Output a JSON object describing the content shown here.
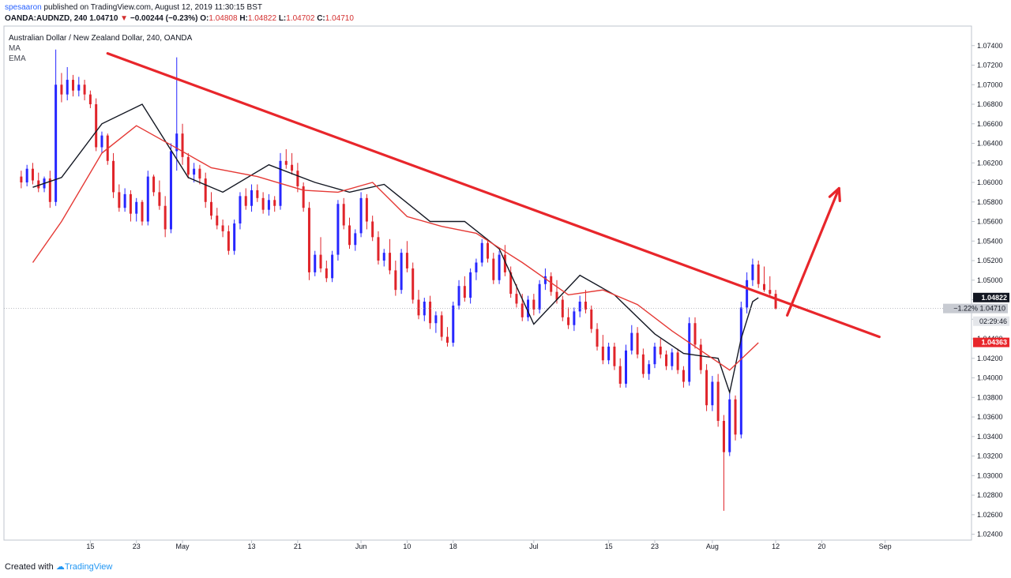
{
  "header": {
    "user": "spesaaron",
    "published": "published on TradingView.com, August 12, 2019 11:30:15 BST",
    "symbol_interval": "OANDA:AUDNZD, 240",
    "last": "1.04710",
    "change": "−0.00244 (−0.23%)",
    "o_label": "O:",
    "o": "1.04808",
    "h_label": "H:",
    "h": "1.04822",
    "l_label": "L:",
    "l": "1.04702",
    "c_label": "C:",
    "c": "1.04710"
  },
  "legend": {
    "title": "Australian Dollar / New Zealand Dollar, 240, OANDA",
    "ma": "MA",
    "ema": "EMA"
  },
  "footer": {
    "created": "Created with",
    "brand": "TradingView"
  },
  "colors": {
    "up": "#2727ff",
    "down": "#e0242a",
    "trendline": "#e8262b",
    "ma": "#131722",
    "ema": "#e53935",
    "brand": "#2196f3"
  },
  "chart_data": {
    "type": "candlestick",
    "title": "Australian Dollar / New Zealand Dollar, 240, OANDA",
    "ylim": [
      1.0234,
      1.076
    ],
    "y_ticks": [
      "1.07400",
      "1.07200",
      "1.07000",
      "1.06800",
      "1.06600",
      "1.06400",
      "1.06200",
      "1.06000",
      "1.05800",
      "1.05600",
      "1.05400",
      "1.05200",
      "1.05000",
      "1.04800",
      "1.04600",
      "1.04400",
      "1.04200",
      "1.04000",
      "1.03800",
      "1.03600",
      "1.03400",
      "1.03200",
      "1.03000",
      "1.02800",
      "1.02600",
      "1.02400"
    ],
    "x_ticks": [
      "15",
      "23",
      "May",
      "13",
      "21",
      "Jun",
      "10",
      "18",
      "Jul",
      "15",
      "23",
      "Aug",
      "12",
      "20",
      "Sep"
    ],
    "x_tick_days": [
      15,
      23,
      31,
      43,
      51,
      62,
      70,
      78,
      92,
      105,
      113,
      123,
      134,
      142,
      153
    ],
    "x_tick_day_origin": "2019-04-01",
    "series": [
      {
        "name": "MA",
        "values": [
          [
            5,
            1.0595
          ],
          [
            10,
            1.0605
          ],
          [
            17,
            1.066
          ],
          [
            24,
            1.068
          ],
          [
            32,
            1.0605
          ],
          [
            38,
            1.059
          ],
          [
            46,
            1.0618
          ],
          [
            54,
            1.06
          ],
          [
            60,
            1.059
          ],
          [
            66,
            1.0598
          ],
          [
            74,
            1.056
          ],
          [
            80,
            1.056
          ],
          [
            86,
            1.0532
          ],
          [
            92,
            1.0455
          ],
          [
            100,
            1.0505
          ],
          [
            106,
            1.0485
          ],
          [
            113,
            1.0445
          ],
          [
            118,
            1.0425
          ],
          [
            124,
            1.042
          ],
          [
            126,
            1.0385
          ],
          [
            128,
            1.044
          ],
          [
            130,
            1.0478
          ],
          [
            131,
            1.0482
          ]
        ]
      },
      {
        "name": "EMA",
        "values": [
          [
            5,
            1.0518
          ],
          [
            10,
            1.056
          ],
          [
            17,
            1.063
          ],
          [
            23,
            1.0658
          ],
          [
            30,
            1.0635
          ],
          [
            36,
            1.0615
          ],
          [
            44,
            1.0606
          ],
          [
            52,
            1.0592
          ],
          [
            58,
            1.059
          ],
          [
            64,
            1.06
          ],
          [
            70,
            1.0565
          ],
          [
            76,
            1.0555
          ],
          [
            82,
            1.0548
          ],
          [
            90,
            1.0518
          ],
          [
            98,
            1.0485
          ],
          [
            104,
            1.049
          ],
          [
            110,
            1.0475
          ],
          [
            116,
            1.0448
          ],
          [
            121,
            1.0428
          ],
          [
            126,
            1.0408
          ],
          [
            131,
            1.0436
          ]
        ]
      }
    ],
    "ohlc": [
      [
        3,
        1.0606,
        1.0612,
        1.0594,
        1.06
      ],
      [
        4,
        1.06,
        1.0618,
        1.0596,
        1.0614
      ],
      [
        5,
        1.0614,
        1.062,
        1.0598,
        1.0602
      ],
      [
        6,
        1.0602,
        1.061,
        1.059,
        1.0594
      ],
      [
        7,
        1.0594,
        1.0606,
        1.059,
        1.0604
      ],
      [
        8,
        1.0604,
        1.0612,
        1.0574,
        1.058
      ],
      [
        9,
        1.058,
        1.0736,
        1.0576,
        1.07
      ],
      [
        10,
        1.07,
        1.0712,
        1.0682,
        1.069
      ],
      [
        11,
        1.069,
        1.0718,
        1.0684,
        1.0705
      ],
      [
        12,
        1.0705,
        1.071,
        1.0688,
        1.0694
      ],
      [
        13,
        1.0694,
        1.0708,
        1.0688,
        1.07
      ],
      [
        14,
        1.07,
        1.0705,
        1.0684,
        1.069
      ],
      [
        15,
        1.069,
        1.0694,
        1.0676,
        1.068
      ],
      [
        16,
        1.068,
        1.0686,
        1.0632,
        1.0636
      ],
      [
        17,
        1.0636,
        1.0652,
        1.063,
        1.0648
      ],
      [
        18,
        1.0648,
        1.065,
        1.0618,
        1.0622
      ],
      [
        19,
        1.0622,
        1.063,
        1.0584,
        1.059
      ],
      [
        20,
        1.059,
        1.0598,
        1.057,
        1.0574
      ],
      [
        21,
        1.0574,
        1.0594,
        1.057,
        1.0588
      ],
      [
        22,
        1.0588,
        1.0592,
        1.056,
        1.0568
      ],
      [
        23,
        1.0568,
        1.0584,
        1.056,
        1.058
      ],
      [
        24,
        1.058,
        1.0582,
        1.0556,
        1.056
      ],
      [
        25,
        1.056,
        1.0612,
        1.0556,
        1.0606
      ],
      [
        26,
        1.0606,
        1.0608,
        1.0586,
        1.059
      ],
      [
        27,
        1.059,
        1.0602,
        1.0572,
        1.0576
      ],
      [
        28,
        1.0576,
        1.0586,
        1.0544,
        1.0552
      ],
      [
        29,
        1.0552,
        1.064,
        1.0548,
        1.0632
      ],
      [
        30,
        1.0632,
        1.0728,
        1.0612,
        1.065
      ],
      [
        31,
        1.065,
        1.066,
        1.0618,
        1.0626
      ],
      [
        32,
        1.0626,
        1.063,
        1.0604,
        1.0608
      ],
      [
        33,
        1.0608,
        1.062,
        1.06,
        1.0614
      ],
      [
        34,
        1.0614,
        1.0618,
        1.0598,
        1.0604
      ],
      [
        35,
        1.0604,
        1.061,
        1.0574,
        1.058
      ],
      [
        36,
        1.058,
        1.059,
        1.0562,
        1.0566
      ],
      [
        37,
        1.0566,
        1.0574,
        1.0552,
        1.0556
      ],
      [
        38,
        1.0556,
        1.0562,
        1.0544,
        1.055
      ],
      [
        39,
        1.055,
        1.0556,
        1.0526,
        1.053
      ],
      [
        40,
        1.053,
        1.0562,
        1.0526,
        1.0558
      ],
      [
        41,
        1.0558,
        1.059,
        1.0552,
        1.0586
      ],
      [
        42,
        1.0586,
        1.0594,
        1.0572,
        1.0576
      ],
      [
        43,
        1.0576,
        1.0598,
        1.057,
        1.0592
      ],
      [
        44,
        1.0592,
        1.0598,
        1.058,
        1.0584
      ],
      [
        45,
        1.0584,
        1.059,
        1.0568,
        1.0572
      ],
      [
        46,
        1.0572,
        1.0588,
        1.0566,
        1.0582
      ],
      [
        47,
        1.0582,
        1.0586,
        1.057,
        1.0576
      ],
      [
        48,
        1.0576,
        1.063,
        1.0572,
        1.0622
      ],
      [
        49,
        1.0622,
        1.0634,
        1.0614,
        1.0618
      ],
      [
        50,
        1.0618,
        1.063,
        1.0608,
        1.0612
      ],
      [
        51,
        1.0612,
        1.062,
        1.059,
        1.0596
      ],
      [
        52,
        1.0596,
        1.06,
        1.057,
        1.0574
      ],
      [
        53,
        1.0574,
        1.058,
        1.05,
        1.0508
      ],
      [
        54,
        1.0508,
        1.053,
        1.0504,
        1.0526
      ],
      [
        55,
        1.0526,
        1.0544,
        1.0508,
        1.0512
      ],
      [
        56,
        1.0512,
        1.052,
        1.0498,
        1.0502
      ],
      [
        57,
        1.0502,
        1.053,
        1.0498,
        1.0526
      ],
      [
        58,
        1.0526,
        1.0582,
        1.052,
        1.0578
      ],
      [
        59,
        1.0578,
        1.0584,
        1.0552,
        1.0556
      ],
      [
        60,
        1.0556,
        1.0564,
        1.0532,
        1.0536
      ],
      [
        61,
        1.0536,
        1.0552,
        1.053,
        1.0548
      ],
      [
        62,
        1.0548,
        1.059,
        1.0544,
        1.0584
      ],
      [
        63,
        1.0584,
        1.0588,
        1.0552,
        1.056
      ],
      [
        64,
        1.056,
        1.0566,
        1.054,
        1.0544
      ],
      [
        65,
        1.0544,
        1.055,
        1.0516,
        1.052
      ],
      [
        66,
        1.052,
        1.0532,
        1.0514,
        1.0528
      ],
      [
        67,
        1.0528,
        1.0542,
        1.0506,
        1.051
      ],
      [
        68,
        1.051,
        1.052,
        1.0484,
        1.049
      ],
      [
        69,
        1.049,
        1.0532,
        1.0486,
        1.0528
      ],
      [
        70,
        1.0528,
        1.054,
        1.0508,
        1.0512
      ],
      [
        71,
        1.0512,
        1.0518,
        1.0476,
        1.048
      ],
      [
        72,
        1.048,
        1.049,
        1.046,
        1.0464
      ],
      [
        73,
        1.0464,
        1.0482,
        1.0458,
        1.0478
      ],
      [
        74,
        1.0478,
        1.0484,
        1.045,
        1.0456
      ],
      [
        75,
        1.0456,
        1.0468,
        1.0446,
        1.0464
      ],
      [
        76,
        1.0464,
        1.0468,
        1.0438,
        1.0442
      ],
      [
        77,
        1.0442,
        1.0452,
        1.0432,
        1.0436
      ],
      [
        78,
        1.0436,
        1.0478,
        1.0432,
        1.0474
      ],
      [
        79,
        1.0474,
        1.05,
        1.047,
        1.0494
      ],
      [
        80,
        1.0494,
        1.0504,
        1.0478,
        1.0482
      ],
      [
        81,
        1.0482,
        1.0512,
        1.0476,
        1.0508
      ],
      [
        82,
        1.0508,
        1.0522,
        1.05,
        1.0518
      ],
      [
        83,
        1.0518,
        1.0542,
        1.0514,
        1.0538
      ],
      [
        84,
        1.0538,
        1.0542,
        1.0518,
        1.0522
      ],
      [
        85,
        1.0522,
        1.0528,
        1.0496,
        1.05
      ],
      [
        86,
        1.05,
        1.053,
        1.0496,
        1.0526
      ],
      [
        87,
        1.0526,
        1.0536,
        1.0504,
        1.0508
      ],
      [
        88,
        1.0508,
        1.0514,
        1.0482,
        1.0486
      ],
      [
        89,
        1.0486,
        1.0496,
        1.0472,
        1.0476
      ],
      [
        90,
        1.0476,
        1.0486,
        1.0458,
        1.0462
      ],
      [
        91,
        1.0462,
        1.0484,
        1.0458,
        1.048
      ],
      [
        92,
        1.048,
        1.0486,
        1.0464,
        1.047
      ],
      [
        93,
        1.047,
        1.05,
        1.0466,
        1.0496
      ],
      [
        94,
        1.0496,
        1.0512,
        1.049,
        1.0504
      ],
      [
        95,
        1.0504,
        1.0508,
        1.0484,
        1.0488
      ],
      [
        96,
        1.0488,
        1.05,
        1.0476,
        1.048
      ],
      [
        97,
        1.048,
        1.0484,
        1.0458,
        1.0462
      ],
      [
        98,
        1.0462,
        1.0472,
        1.045,
        1.0454
      ],
      [
        99,
        1.0454,
        1.0472,
        1.0448,
        1.0468
      ],
      [
        100,
        1.0468,
        1.0484,
        1.0462,
        1.0478
      ],
      [
        101,
        1.0478,
        1.049,
        1.0466,
        1.047
      ],
      [
        102,
        1.047,
        1.0474,
        1.0446,
        1.045
      ],
      [
        103,
        1.045,
        1.0456,
        1.0428,
        1.0432
      ],
      [
        104,
        1.0432,
        1.0444,
        1.0414,
        1.0418
      ],
      [
        105,
        1.0418,
        1.0436,
        1.0414,
        1.0432
      ],
      [
        106,
        1.0432,
        1.0436,
        1.0408,
        1.0412
      ],
      [
        107,
        1.0412,
        1.042,
        1.039,
        1.0394
      ],
      [
        108,
        1.0394,
        1.0434,
        1.039,
        1.0428
      ],
      [
        109,
        1.0428,
        1.0454,
        1.0424,
        1.0446
      ],
      [
        110,
        1.0446,
        1.0452,
        1.042,
        1.0424
      ],
      [
        111,
        1.0424,
        1.043,
        1.04,
        1.0404
      ],
      [
        112,
        1.0404,
        1.0418,
        1.0398,
        1.0414
      ],
      [
        113,
        1.0414,
        1.0436,
        1.041,
        1.0432
      ],
      [
        114,
        1.0432,
        1.044,
        1.042,
        1.0424
      ],
      [
        115,
        1.0424,
        1.0428,
        1.0408,
        1.0412
      ],
      [
        116,
        1.0412,
        1.043,
        1.0408,
        1.0426
      ],
      [
        117,
        1.0426,
        1.043,
        1.0404,
        1.0408
      ],
      [
        118,
        1.0408,
        1.0412,
        1.039,
        1.0396
      ],
      [
        119,
        1.0396,
        1.0462,
        1.0392,
        1.0456
      ],
      [
        120,
        1.0456,
        1.0462,
        1.043,
        1.0434
      ],
      [
        121,
        1.0434,
        1.044,
        1.0404,
        1.0408
      ],
      [
        122,
        1.0408,
        1.0414,
        1.0366,
        1.0372
      ],
      [
        123,
        1.0372,
        1.0402,
        1.0366,
        1.0396
      ],
      [
        124,
        1.0396,
        1.0404,
        1.035,
        1.0356
      ],
      [
        125,
        1.0356,
        1.0362,
        1.0264,
        1.0324
      ],
      [
        126,
        1.0324,
        1.0384,
        1.032,
        1.0378
      ],
      [
        127,
        1.0378,
        1.0382,
        1.0336,
        1.0342
      ],
      [
        128,
        1.0342,
        1.0478,
        1.0338,
        1.0472
      ],
      [
        129,
        1.0472,
        1.0508,
        1.0466,
        1.05
      ],
      [
        130,
        1.05,
        1.0522,
        1.0494,
        1.0516
      ],
      [
        131,
        1.0516,
        1.052,
        1.0492,
        1.0496
      ],
      [
        132,
        1.0496,
        1.0514,
        1.0488,
        1.049
      ],
      [
        133,
        1.049,
        1.0504,
        1.0484,
        1.0486
      ],
      [
        134,
        1.0486,
        1.049,
        1.047,
        1.0471
      ]
    ],
    "annotations": {
      "trendline": [
        [
          18,
          1.0732
        ],
        [
          152,
          1.0442
        ]
      ],
      "arrow": [
        [
          136,
          1.0464
        ],
        [
          145,
          1.0594
        ]
      ],
      "price_labels": [
        {
          "text": "1.04822",
          "value": 1.04822,
          "style": "dark"
        },
        {
          "text": "−1.22%  1.04710",
          "value": 1.0471,
          "style": "gray"
        },
        {
          "text": "02:29:46",
          "value": 1.0458,
          "style": "lightgray"
        },
        {
          "text": "1.04363",
          "value": 1.04363,
          "style": "red"
        }
      ]
    }
  }
}
